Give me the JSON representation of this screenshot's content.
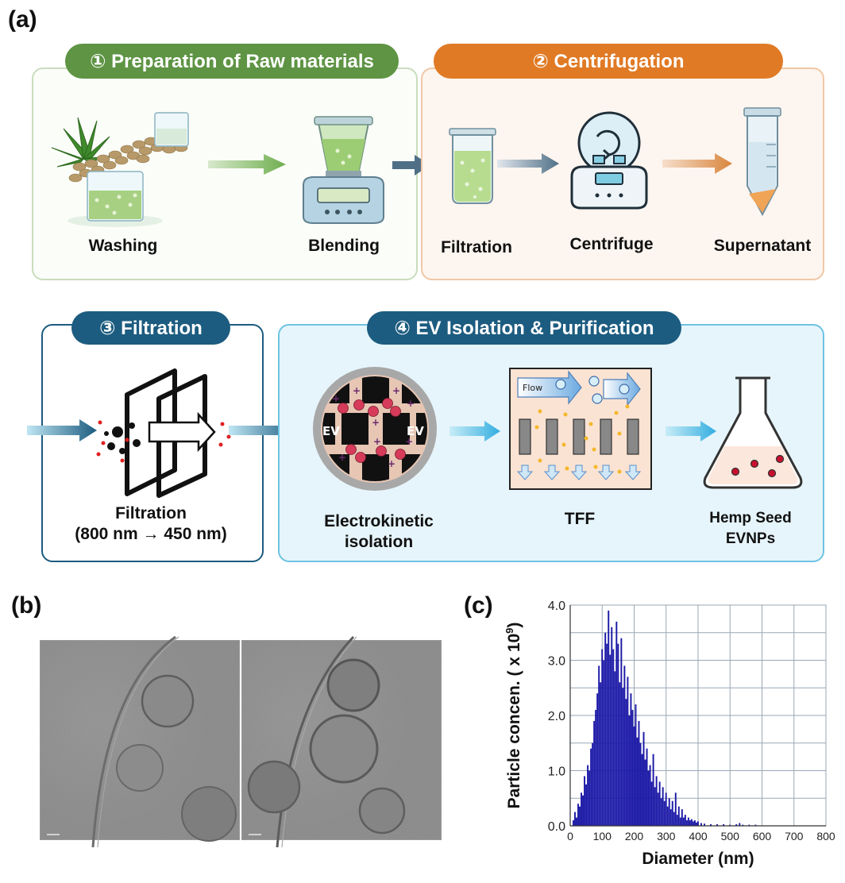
{
  "panels": {
    "a": "(a)",
    "b": "(b)",
    "c": "(c)"
  },
  "steps": [
    {
      "title": "① Preparation of Raw materials",
      "color": "#5e9444",
      "items": [
        "Washing",
        "Blending"
      ]
    },
    {
      "title": "② Centrifugation",
      "color": "#e07a25",
      "items": [
        "Filtration",
        "Centrifuge",
        "Supernatant"
      ]
    },
    {
      "title": "③ Filtration",
      "color": "#1c5c80",
      "items": [
        "Filtration",
        "(800 nm → 450 nm)"
      ]
    },
    {
      "title": "④ EV Isolation & Purification",
      "color": "#1c5c80",
      "items": [
        "Electrokinetic",
        "isolation",
        "TFF",
        "Hemp Seed",
        "EVNPs"
      ]
    }
  ],
  "icon_text": {
    "ev": "EV",
    "flow": "Flow"
  },
  "chart_data": {
    "type": "bar",
    "title": "",
    "xlabel": "Diameter (nm)",
    "ylabel": "Particle concen. ( x 10",
    "ylabel_sup": "9",
    "ylabel_end": ")",
    "xlim": [
      0,
      800
    ],
    "ylim": [
      0,
      4.0
    ],
    "xticks": [
      "0",
      "100",
      "200",
      "300",
      "400",
      "500",
      "600",
      "700",
      "800"
    ],
    "yticks": [
      "0.0",
      "1.0",
      "2.0",
      "3.0",
      "4.0"
    ],
    "grid": true,
    "bar_color": "#1a17a6",
    "bin_width": 5,
    "x": [
      10,
      15,
      20,
      25,
      30,
      35,
      40,
      45,
      50,
      55,
      60,
      65,
      70,
      75,
      80,
      85,
      90,
      95,
      100,
      105,
      110,
      115,
      120,
      125,
      130,
      135,
      140,
      145,
      150,
      155,
      160,
      165,
      170,
      175,
      180,
      185,
      190,
      195,
      200,
      205,
      210,
      215,
      220,
      225,
      230,
      235,
      240,
      245,
      250,
      255,
      260,
      265,
      270,
      275,
      280,
      285,
      290,
      295,
      300,
      305,
      310,
      315,
      320,
      325,
      330,
      335,
      340,
      345,
      350,
      355,
      360,
      365,
      370,
      375,
      380,
      385,
      390,
      395,
      400,
      410,
      420,
      440,
      460,
      480,
      500,
      520,
      530,
      540,
      560,
      580
    ],
    "values": [
      0.1,
      0.25,
      0.15,
      0.4,
      0.35,
      0.6,
      0.55,
      0.9,
      0.75,
      1.1,
      1.0,
      1.4,
      1.5,
      1.9,
      2.1,
      2.4,
      2.9,
      2.6,
      3.2,
      3.0,
      3.5,
      3.3,
      3.9,
      3.1,
      3.6,
      3.2,
      2.8,
      3.7,
      3.3,
      2.6,
      3.4,
      2.5,
      2.9,
      2.3,
      2.7,
      2.0,
      2.4,
      2.1,
      1.8,
      2.2,
      1.6,
      1.9,
      1.5,
      1.3,
      1.7,
      1.2,
      1.4,
      1.0,
      1.1,
      0.8,
      1.3,
      0.7,
      0.9,
      0.6,
      0.8,
      0.5,
      0.7,
      0.45,
      0.6,
      0.35,
      0.5,
      0.3,
      0.45,
      0.25,
      0.6,
      0.2,
      0.35,
      0.15,
      0.3,
      0.15,
      0.2,
      0.1,
      0.15,
      0.1,
      0.12,
      0.08,
      0.1,
      0.06,
      0.08,
      0.05,
      0.04,
      0.03,
      0.03,
      0.03,
      0.02,
      0.03,
      0.05,
      0.02,
      0.02,
      0.02
    ]
  }
}
